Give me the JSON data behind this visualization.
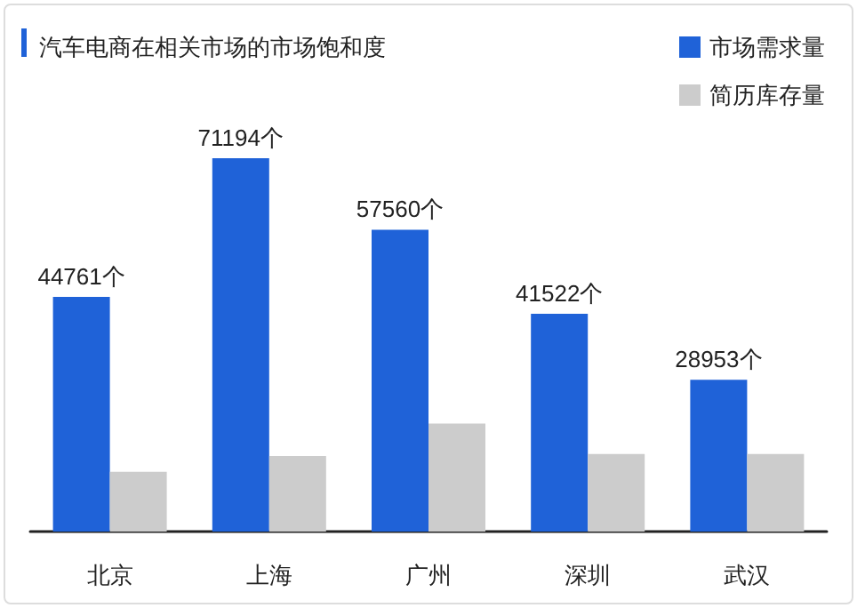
{
  "chart_data": {
    "type": "bar",
    "title": "汽车电商在相关市场的市场饱和度",
    "categories": [
      "北京",
      "上海",
      "广州",
      "深圳",
      "武汉"
    ],
    "series": [
      {
        "name": "市场需求量",
        "color": "#1f62d8",
        "values": [
          44761,
          71194,
          57560,
          41522,
          28953
        ],
        "value_labels": [
          "44761个",
          "71194个",
          "57560个",
          "41522个",
          "28953个"
        ]
      },
      {
        "name": "简历库存量",
        "color": "#cccccc",
        "values": [
          11400,
          14400,
          20600,
          14800,
          14800
        ]
      }
    ],
    "legend": "top right",
    "tick_labels": "x"
  }
}
